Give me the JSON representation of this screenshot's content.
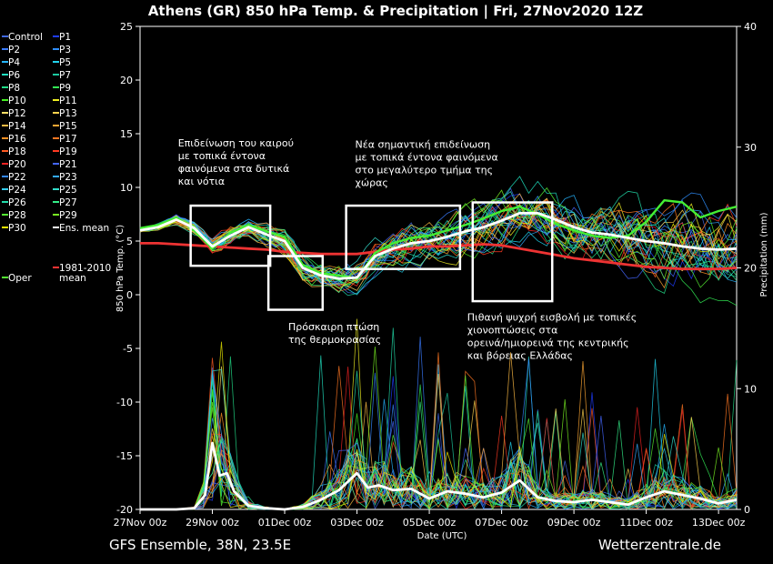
{
  "chart_data": {
    "type": "line",
    "title": "Athens  (GR)  850 hPa Temp. & Precipitation | Fri, 27Nov2020 12Z",
    "ylabel_left": "850 hPa Temp. (°C)",
    "ylabel_right": "Precipitation (mm)",
    "xlabel": "Date (UTC)",
    "ylim_left": [
      -20,
      25
    ],
    "ylim_right": [
      0,
      40
    ],
    "y_ticks_left": [
      "25",
      "20",
      "15",
      "10",
      "5",
      "0",
      "-5",
      "-10",
      "-15",
      "-20"
    ],
    "y_ticks_right": [
      "40",
      "30",
      "20",
      "10",
      "0"
    ],
    "x_ticks": [
      "27Nov 00z",
      "29Nov 00z",
      "01Dec 00z",
      "03Dec 00z",
      "05Dec 00z",
      "07Dec 00z",
      "09Dec 00z",
      "11Dec 00z",
      "13Dec 00z"
    ],
    "x_range_days": [
      0,
      16.5
    ],
    "grid": false,
    "legend_placement": "left",
    "legend": [
      {
        "label": "Control",
        "color": "#4169e1"
      },
      {
        "label": "P1",
        "color": "#1e3cff"
      },
      {
        "label": "P2",
        "color": "#3a7bff"
      },
      {
        "label": "P3",
        "color": "#2f8fff"
      },
      {
        "label": "P4",
        "color": "#26b5ff"
      },
      {
        "label": "P5",
        "color": "#22d3ee"
      },
      {
        "label": "P6",
        "color": "#20e0c0"
      },
      {
        "label": "P7",
        "color": "#1cc9a0"
      },
      {
        "label": "P8",
        "color": "#22dd88"
      },
      {
        "label": "P9",
        "color": "#33ee55"
      },
      {
        "label": "P10",
        "color": "#44ee22"
      },
      {
        "label": "P11",
        "color": "#eeee22"
      },
      {
        "label": "P12",
        "color": "#ffe066"
      },
      {
        "label": "P13",
        "color": "#ffd24d"
      },
      {
        "label": "P14",
        "color": "#ffbb44"
      },
      {
        "label": "P15",
        "color": "#ffa733"
      },
      {
        "label": "P16",
        "color": "#ff9022"
      },
      {
        "label": "P17",
        "color": "#ff7722"
      },
      {
        "label": "P18",
        "color": "#ff5a22"
      },
      {
        "label": "P19",
        "color": "#ff3a22"
      },
      {
        "label": "P20",
        "color": "#ee2222"
      },
      {
        "label": "P21",
        "color": "#4466ff"
      },
      {
        "label": "P22",
        "color": "#3388ff"
      },
      {
        "label": "P23",
        "color": "#33aaff"
      },
      {
        "label": "P24",
        "color": "#33ccee"
      },
      {
        "label": "P25",
        "color": "#33ddcc"
      },
      {
        "label": "P26",
        "color": "#22ddaa"
      },
      {
        "label": "P27",
        "color": "#33ee88"
      },
      {
        "label": "P28",
        "color": "#55ee33"
      },
      {
        "label": "P29",
        "color": "#77ee22"
      },
      {
        "label": "P30",
        "color": "#eeee00"
      },
      {
        "label": "Ens. mean",
        "color": "#ffffff"
      },
      {
        "label": "Oper",
        "color": "#55ee33"
      },
      {
        "label": "1981-2010 mean",
        "color": "#ff3333"
      }
    ],
    "series": [
      {
        "name": "Ens. mean",
        "axis": "temp",
        "x": [
          0,
          0.5,
          1,
          1.5,
          2,
          2.5,
          3,
          3.5,
          4,
          4.5,
          5,
          5.5,
          6,
          6.5,
          7,
          7.5,
          8,
          8.5,
          9,
          9.5,
          10,
          10.5,
          11,
          11.5,
          12,
          12.5,
          13,
          13.5,
          14,
          14.5,
          15,
          15.5,
          16,
          16.5
        ],
        "values": [
          6.0,
          6.3,
          7.0,
          6.2,
          4.5,
          5.5,
          6.3,
          5.6,
          5.0,
          2.5,
          1.8,
          1.5,
          1.6,
          3.6,
          4.3,
          4.8,
          5.0,
          5.4,
          5.9,
          6.3,
          6.9,
          7.6,
          7.6,
          7.0,
          6.3,
          5.8,
          5.6,
          5.3,
          5.0,
          4.8,
          4.5,
          4.3,
          4.2,
          4.3
        ]
      },
      {
        "name": "1981-2010 mean",
        "axis": "temp",
        "x": [
          0,
          0.5,
          1,
          1.5,
          2,
          2.5,
          3,
          3.5,
          4,
          4.5,
          5,
          5.5,
          6,
          6.5,
          7,
          7.5,
          8,
          8.5,
          9,
          9.5,
          10,
          10.5,
          11,
          11.5,
          12,
          12.5,
          13,
          13.5,
          14,
          14.5,
          15,
          15.5,
          16,
          16.5
        ],
        "values": [
          4.8,
          4.8,
          4.7,
          4.6,
          4.5,
          4.4,
          4.3,
          4.2,
          4.0,
          3.9,
          3.8,
          3.8,
          3.8,
          4.0,
          4.2,
          4.3,
          4.5,
          4.5,
          4.6,
          4.7,
          4.6,
          4.3,
          4.0,
          3.7,
          3.4,
          3.2,
          3.0,
          2.8,
          2.6,
          2.5,
          2.4,
          2.4,
          2.4,
          2.5
        ]
      },
      {
        "name": "Oper",
        "axis": "temp",
        "x": [
          0,
          0.5,
          1,
          1.5,
          2,
          2.5,
          3,
          3.5,
          4,
          4.5,
          5,
          5.5,
          6,
          6.5,
          7,
          7.5,
          8,
          8.5,
          9,
          9.5,
          10,
          10.5,
          11,
          11.5,
          12,
          12.5,
          13,
          13.5,
          14,
          14.5,
          15,
          15.5,
          16,
          16.5
        ],
        "values": [
          6.2,
          6.5,
          7.2,
          6.0,
          4.3,
          5.8,
          6.5,
          5.9,
          5.4,
          2.8,
          2.0,
          1.8,
          1.5,
          3.9,
          4.8,
          5.3,
          5.5,
          6.0,
          6.5,
          7.1,
          7.8,
          8.2,
          7.5,
          6.6,
          6.0,
          5.5,
          5.3,
          5.5,
          6.8,
          8.8,
          8.6,
          7.2,
          7.8,
          8.2
        ]
      },
      {
        "name": "Ens. mean",
        "axis": "precip",
        "x": [
          0,
          1,
          1.5,
          1.8,
          2,
          2.2,
          2.4,
          2.6,
          3,
          3.5,
          4,
          4.5,
          5,
          5.5,
          6,
          6.3,
          6.6,
          7,
          7.5,
          8,
          8.5,
          9,
          9.5,
          10,
          10.5,
          11,
          11.5,
          12,
          12.5,
          13,
          13.5,
          14,
          14.5,
          15,
          15.5,
          16,
          16.5
        ],
        "values": [
          0,
          0,
          0.1,
          1.2,
          5.5,
          2.8,
          3.0,
          1.5,
          0.3,
          0.1,
          0,
          0.2,
          0.8,
          1.6,
          3.0,
          1.8,
          2.0,
          1.6,
          1.7,
          0.9,
          1.5,
          1.3,
          1.0,
          1.4,
          2.4,
          1.0,
          0.7,
          0.6,
          0.8,
          0.6,
          0.4,
          1.0,
          1.5,
          1.2,
          0.9,
          0.5,
          0.8
        ]
      }
    ],
    "annotations": [
      {
        "text_lines": [
          "Επιδείνωση του καιρού",
          "με τοπικά έντονα",
          "φαινόμενα στα δυτικά",
          "και νότια"
        ]
      },
      {
        "text_lines": [
          "Πρόσκαιρη πτώση",
          "της θερμοκρασίας"
        ]
      },
      {
        "text_lines": [
          "Νέα σημαντική επιδείνωση",
          "με τοπικά έντονα φαινόμενα",
          "στο μεγαλύτερο τμήμα της",
          "χώρας"
        ]
      },
      {
        "text_lines": [
          "Πιθανή ψυχρή εισβολή με τοπικές",
          "χιονοπτώσεις στα",
          "ορεινά/ημιορεινά της κεντρικής",
          "και βόρειας Ελλάδας"
        ]
      }
    ],
    "footer_left": "GFS Ensemble, 38N, 23.5E",
    "footer_right": "Wetterzentrale.de"
  }
}
